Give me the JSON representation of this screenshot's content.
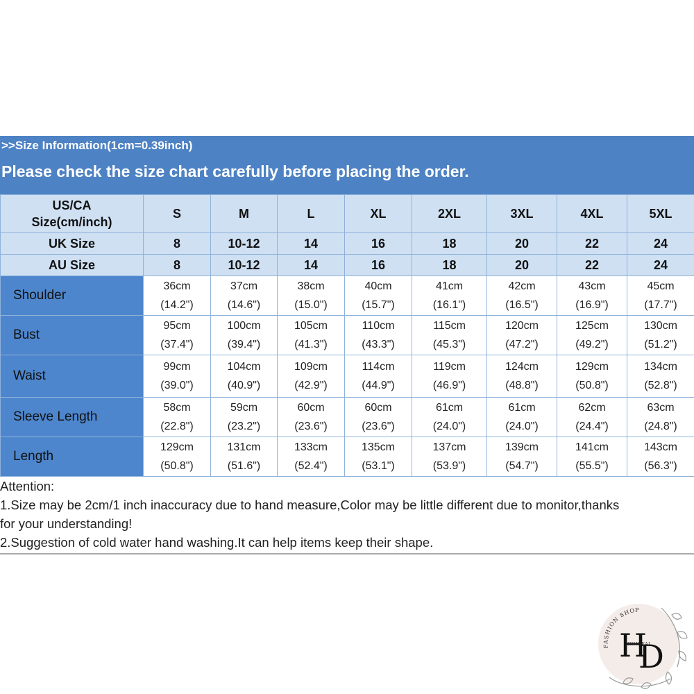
{
  "banner": {
    "line1": ">>Size Information(1cm=0.39inch)",
    "line2": "Please check the size chart carefully before placing the order."
  },
  "table": {
    "header_rows": [
      [
        "US/CA\nSize(cm/inch)",
        "S",
        "M",
        "L",
        "XL",
        "2XL",
        "3XL",
        "4XL",
        "5XL"
      ],
      [
        "UK Size",
        "8",
        "10-12",
        "14",
        "16",
        "18",
        "20",
        "22",
        "24"
      ],
      [
        "AU Size",
        "8",
        "10-12",
        "14",
        "16",
        "18",
        "20",
        "22",
        "24"
      ]
    ],
    "rows": [
      {
        "label": "Shoulder",
        "cm": [
          "36cm",
          "37cm",
          "38cm",
          "40cm",
          "41cm",
          "42cm",
          "43cm",
          "45cm"
        ],
        "inch": [
          "(14.2\")",
          "(14.6\")",
          "(15.0\")",
          "(15.7\")",
          "(16.1\")",
          "(16.5\")",
          "(16.9\")",
          "(17.7\")"
        ]
      },
      {
        "label": "Bust",
        "cm": [
          "95cm",
          "100cm",
          "105cm",
          "110cm",
          "115cm",
          "120cm",
          "125cm",
          "130cm"
        ],
        "inch": [
          "(37.4\")",
          "(39.4\")",
          "(41.3\")",
          "(43.3\")",
          "(45.3\")",
          "(47.2\")",
          "(49.2\")",
          "(51.2\")"
        ]
      },
      {
        "label": "Waist",
        "cm": [
          "99cm",
          "104cm",
          "109cm",
          "114cm",
          "119cm",
          "124cm",
          "129cm",
          "134cm"
        ],
        "inch": [
          "(39.0\")",
          "(40.9\")",
          "(42.9\")",
          "(44.9\")",
          "(46.9\")",
          "(48.8\")",
          "(50.8\")",
          "(52.8\")"
        ]
      },
      {
        "label": "Sleeve Length",
        "cm": [
          "58cm",
          "59cm",
          "60cm",
          "60cm",
          "61cm",
          "61cm",
          "62cm",
          "63cm"
        ],
        "inch": [
          "(22.8\")",
          "(23.2\")",
          "(23.6\")",
          "(23.6\")",
          "(24.0\")",
          "(24.0\")",
          "(24.4\")",
          "(24.8\")"
        ]
      },
      {
        "label": "Length",
        "cm": [
          "129cm",
          "131cm",
          "133cm",
          "135cm",
          "137cm",
          "139cm",
          "141cm",
          "143cm"
        ],
        "inch": [
          "(50.8\")",
          "(51.6\")",
          "(52.4\")",
          "(53.1\")",
          "(53.9\")",
          "(54.7\")",
          "(55.5\")",
          "(56.3\")"
        ]
      }
    ]
  },
  "notes": {
    "title": "Attention:",
    "line1a": "1.Size may be 2cm/1 inch inaccuracy due to hand measure,Color may be little different due to monitor,thanks",
    "line1b": "for your understanding!",
    "line2": "2.Suggestion of cold water hand washing.It can help items keep their shape."
  },
  "logo": {
    "monogram_h": "H",
    "monogram_d": "D",
    "arc_text": "FASHION SHOP",
    "brand": "HIMDEAL"
  },
  "colors": {
    "banner": "#4d82c4",
    "header_cell": "#cfe0f3",
    "label_cell": "#4d86cc",
    "grid_line": "#8fb2da"
  }
}
